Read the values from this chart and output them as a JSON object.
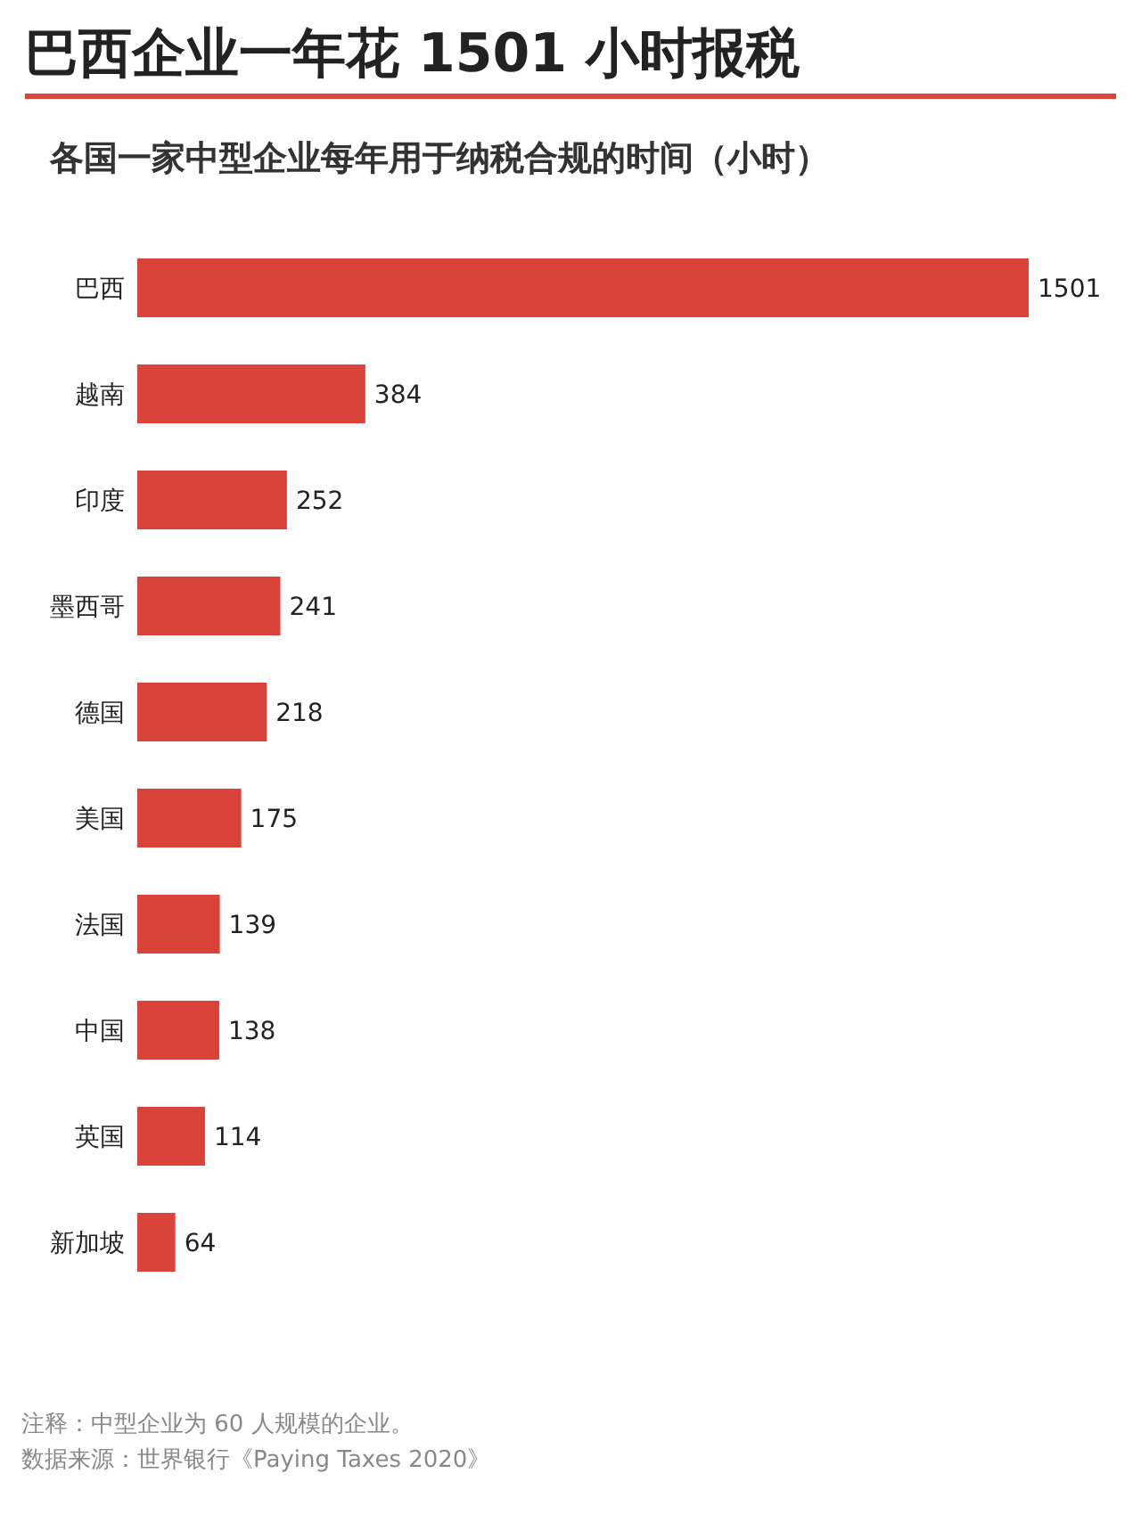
{
  "chart_data": {
    "type": "bar",
    "orientation": "horizontal",
    "title": "巴西企业一年花 1501 小时报税",
    "subtitle": "各国一家中型企业每年用于纳税合规的时间（小时）",
    "categories": [
      "巴西",
      "越南",
      "印度",
      "墨西哥",
      "德国",
      "美国",
      "法国",
      "中国",
      "英国",
      "新加坡"
    ],
    "values": [
      1501,
      384,
      252,
      241,
      218,
      175,
      139,
      138,
      114,
      64
    ],
    "color": "#d9433a",
    "data_labels": true,
    "annotations": [
      "注释：中型企业为 60 人规模的企业。",
      "数据来源：世界银行《Paying Taxes 2020》"
    ]
  }
}
